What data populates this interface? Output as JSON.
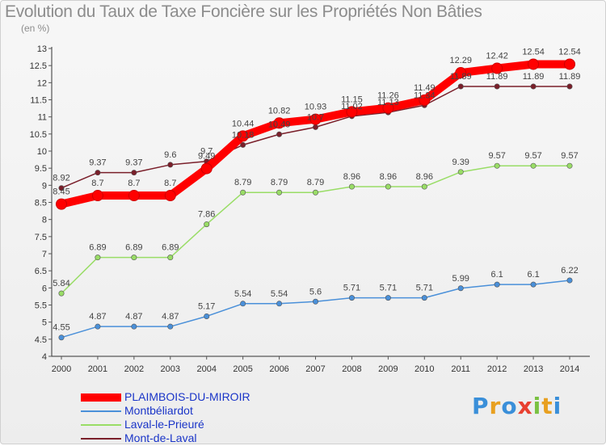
{
  "header": {
    "title": "Evolution du Taux de Taxe Foncière sur les Propriétés Non Bâties",
    "unit": "(en %)"
  },
  "brand": {
    "text": "Proxiti"
  },
  "chart_data": {
    "type": "line",
    "title": "Evolution du Taux de Taxe Foncière sur les Propriétés Non Bâties",
    "xlabel": "",
    "ylabel": "(en %)",
    "x": [
      "2000",
      "2001",
      "2002",
      "2003",
      "2004",
      "2005",
      "2006",
      "2007",
      "2008",
      "2009",
      "2010",
      "2011",
      "2012",
      "2013",
      "2014"
    ],
    "ylim": [
      4,
      13
    ],
    "yticks": [
      4,
      4.5,
      5,
      5.5,
      6,
      6.5,
      7,
      7.5,
      8,
      8.5,
      9,
      9.5,
      10,
      10.5,
      11,
      11.5,
      12,
      12.5,
      13
    ],
    "ytick_labels": [
      "4",
      "4.5",
      "5",
      "5.5",
      "6",
      "6.5",
      "7",
      "7.5",
      "8",
      "8.5",
      "9",
      "9.5",
      "10",
      "10.5",
      "11",
      "11.5",
      "12",
      "12.5",
      "13"
    ],
    "grid": false,
    "legend_position": "bottom-left",
    "series": [
      {
        "name": "Mont-de-Laval",
        "color": "#7a1f2a",
        "values": [
          8.92,
          9.37,
          9.37,
          9.6,
          9.7,
          10.18,
          10.49,
          10.7,
          11.02,
          11.13,
          11.34,
          11.89,
          11.89,
          11.89,
          11.89
        ],
        "labels": [
          "8.92",
          "9.37",
          "9.37",
          "9.6",
          "9.7",
          "10.18",
          "10.49",
          "10.7",
          "11.02",
          "11.13",
          "11.34",
          "11.89",
          "11.89",
          "11.89",
          "11.89"
        ]
      },
      {
        "name": "Laval-le-Prieuré",
        "color": "#99dd66",
        "values": [
          5.84,
          6.89,
          6.89,
          6.89,
          7.86,
          8.79,
          8.79,
          8.79,
          8.96,
          8.96,
          8.96,
          9.39,
          9.57,
          9.57,
          9.57
        ],
        "labels": [
          "5.84",
          "6.89",
          "6.89",
          "6.89",
          "7.86",
          "8.79",
          "8.79",
          "8.79",
          "8.96",
          "8.96",
          "8.96",
          "9.39",
          "9.57",
          "9.57",
          "9.57"
        ]
      },
      {
        "name": "Montbéliardot",
        "color": "#4a90d9",
        "values": [
          4.55,
          4.87,
          4.87,
          4.87,
          5.17,
          5.54,
          5.54,
          5.6,
          5.71,
          5.71,
          5.71,
          5.99,
          6.1,
          6.1,
          6.22
        ],
        "labels": [
          "4.55",
          "4.87",
          "4.87",
          "4.87",
          "5.17",
          "5.54",
          "5.54",
          "5.6",
          "5.71",
          "5.71",
          "5.71",
          "5.99",
          "6.1",
          "6.1",
          "6.22"
        ]
      },
      {
        "name": "PLAIMBOIS-DU-MIROIR",
        "color": "#ff0000",
        "values": [
          8.45,
          8.7,
          8.7,
          8.7,
          9.49,
          10.44,
          10.82,
          10.93,
          11.15,
          11.26,
          11.49,
          12.29,
          12.42,
          12.54,
          12.54
        ],
        "labels": [
          "8.45",
          "8.7",
          "8.7",
          "8.7",
          "9.49",
          "10.44",
          "10.82",
          "10.93",
          "11.15",
          "11.26",
          "11.49",
          "12.29",
          "12.42",
          "12.54",
          "12.54"
        ]
      }
    ]
  },
  "legend": {
    "items": [
      {
        "label": "PLAIMBOIS-DU-MIROIR",
        "color": "#ff0000"
      },
      {
        "label": "Montbéliardot",
        "color": "#4a90d9"
      },
      {
        "label": "Laval-le-Prieuré",
        "color": "#99dd66"
      },
      {
        "label": "Mont-de-Laval",
        "color": "#7a1f2a"
      }
    ]
  }
}
